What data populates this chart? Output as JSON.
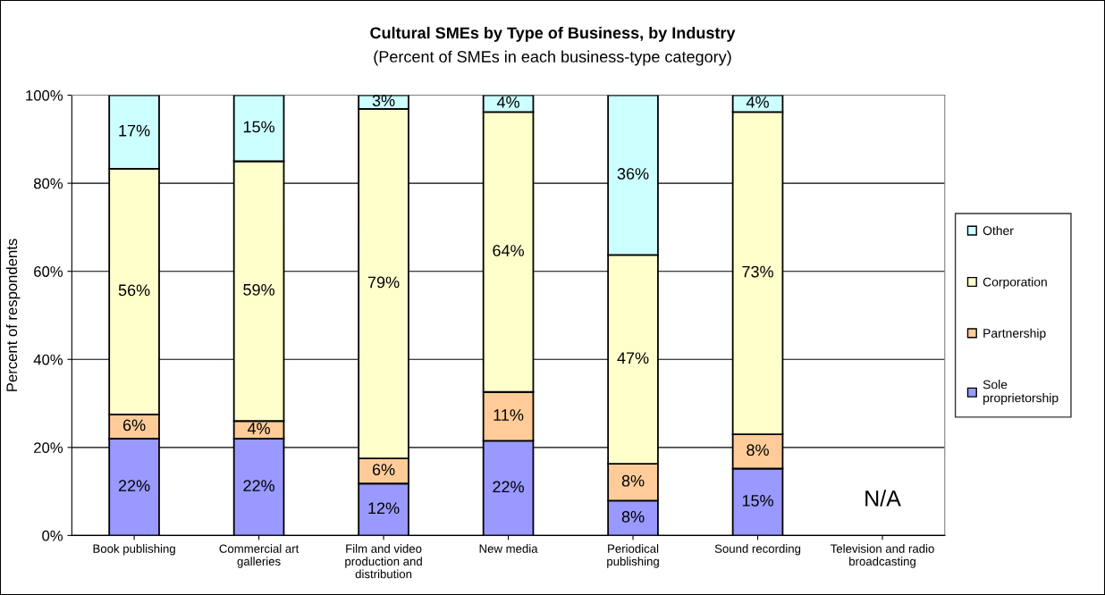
{
  "chart_data": {
    "type": "bar",
    "stacked": true,
    "title": "Cultural SMEs by Type of Business, by Industry",
    "subtitle": "(Percent of SMEs in each business-type category)",
    "ylabel": "Percent of respondents",
    "categories": [
      "Book publishing",
      "Commercial art galleries",
      "Film and video production and distribution",
      "New media",
      "Periodical publishing",
      "Sound recording",
      "Television and radio broadcasting"
    ],
    "series": [
      {
        "name": "Sole proprietorship",
        "color": "#9999ff",
        "values": [
          22,
          22,
          11.8,
          21.5,
          7.9,
          15.2,
          null
        ],
        "value_labels": [
          "22%",
          "22%",
          "12%",
          "22%",
          "8%",
          "15%",
          null
        ]
      },
      {
        "name": "Partnership",
        "color": "#ffcc99",
        "values": [
          5.5,
          4,
          5.7,
          11.1,
          8.4,
          7.8,
          null
        ],
        "value_labels": [
          "6%",
          "4%",
          "6%",
          "11%",
          "8%",
          "8%",
          null
        ]
      },
      {
        "name": "Corporation",
        "color": "#ffffcc",
        "values": [
          55.8,
          59,
          79.4,
          63.6,
          47.4,
          73.2,
          null
        ],
        "value_labels": [
          "56%",
          "59%",
          "79%",
          "64%",
          "47%",
          "73%",
          null
        ]
      },
      {
        "name": "Other",
        "color": "#ccffff",
        "values": [
          16.7,
          15,
          3.1,
          3.8,
          36.3,
          3.8,
          null
        ],
        "value_labels": [
          "17%",
          "15%",
          "3%",
          "4%",
          "36%",
          "4%",
          null
        ]
      }
    ],
    "annotations": [
      "N/A"
    ],
    "ylim": [
      0,
      100
    ],
    "yticks": [
      {
        "value": 0,
        "label": "0%"
      },
      {
        "value": 20,
        "label": "20%"
      },
      {
        "value": 40,
        "label": "40%"
      },
      {
        "value": 60,
        "label": "60%"
      },
      {
        "value": 80,
        "label": "80%"
      },
      {
        "value": 100,
        "label": "100%"
      }
    ],
    "grid": "y",
    "legend": "right"
  }
}
